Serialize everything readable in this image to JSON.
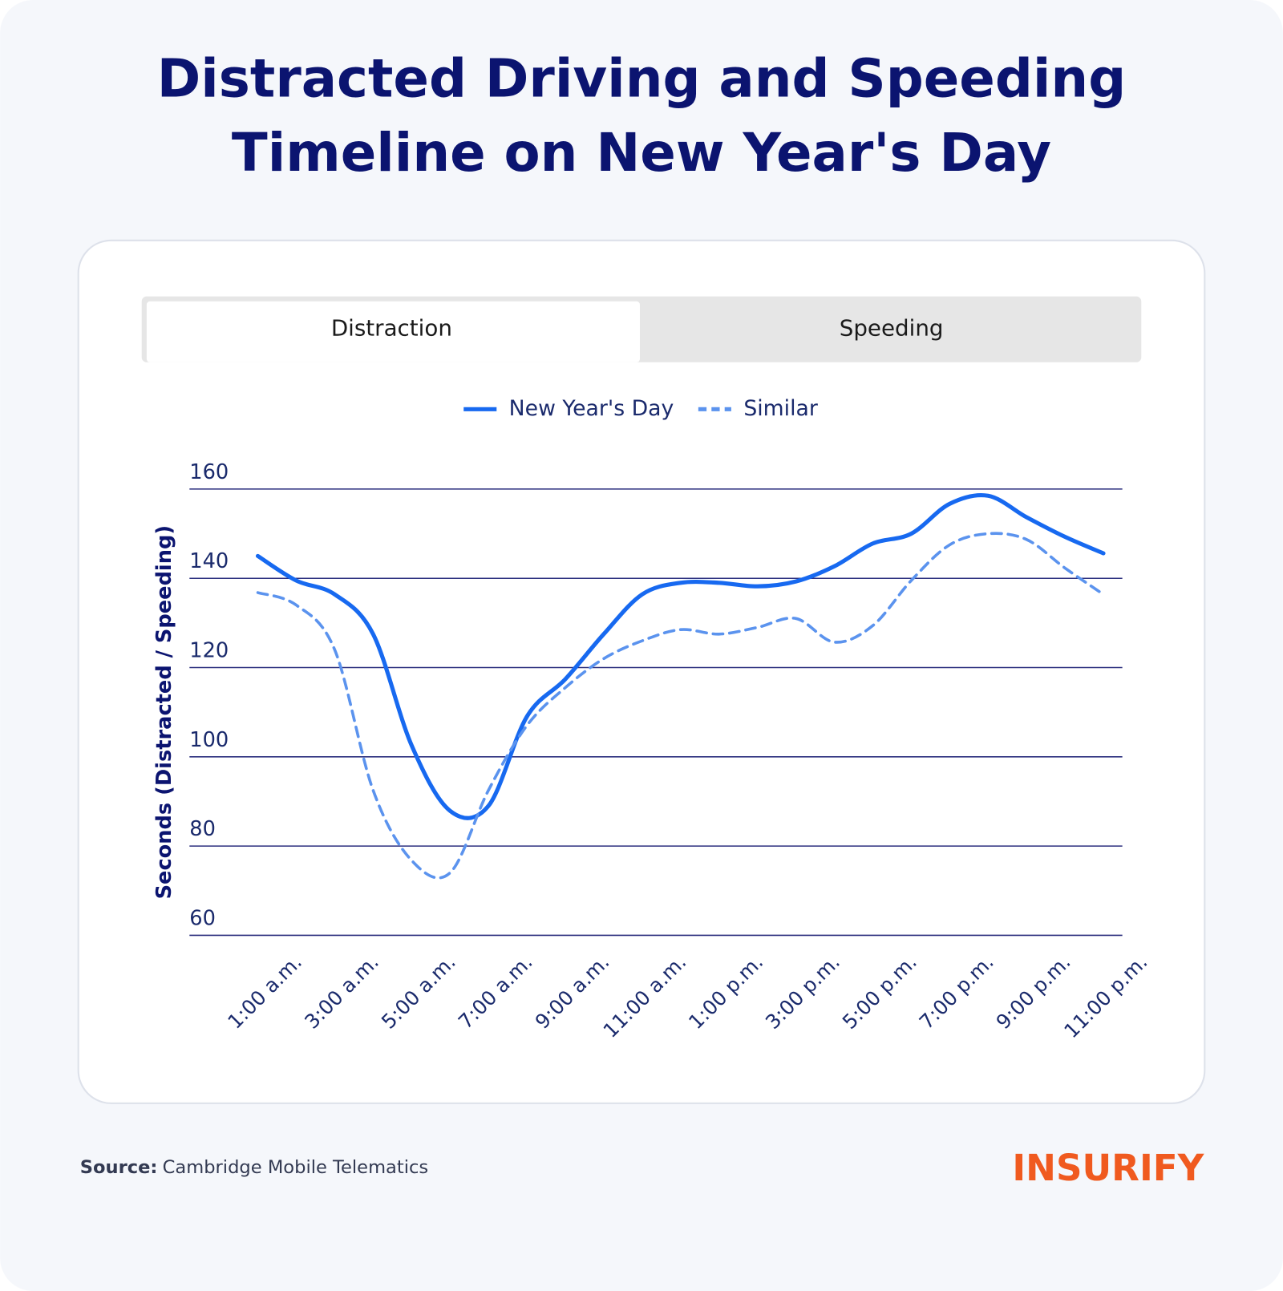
{
  "chart_data": {
    "type": "line",
    "title": [
      "Distracted Driving and Speeding",
      "Timeline on New Year's Day"
    ],
    "tabs": [
      {
        "label": "Distraction",
        "active": true
      },
      {
        "label": "Speeding",
        "active": false
      }
    ],
    "ylabel": "Seconds (Distracted / Speeding)",
    "categories": [
      "1:00 a.m.",
      null,
      "3:00 a.m.",
      null,
      "5:00 a.m.",
      null,
      "7:00 a.m.",
      null,
      "9:00 a.m.",
      null,
      "11:00 a.m.",
      null,
      "1:00 p.m.",
      null,
      "3:00 p.m.",
      null,
      "5:00 p.m.",
      null,
      "7:00 p.m.",
      null,
      "9:00 p.m.",
      null,
      "11:00 p.m."
    ],
    "series": [
      {
        "name": "New Year's Day",
        "color": "#1769f0",
        "dashed": false,
        "values": [
          145,
          139.5,
          136.4,
          127.5,
          102.6,
          87.9,
          89,
          109,
          117.4,
          127.5,
          136.4,
          139,
          139,
          138.2,
          139.3,
          142.7,
          147.8,
          150,
          156.7,
          158.5,
          153.7,
          149.3,
          145.6
        ]
      },
      {
        "name": "Similar",
        "color": "#5b93ee",
        "dashed": true,
        "values": [
          136.8,
          134,
          124,
          92.5,
          76.8,
          74,
          92.5,
          107,
          115.5,
          122,
          126,
          128.5,
          127.5,
          129,
          131,
          125.7,
          129.4,
          139.5,
          147.5,
          150,
          148.7,
          142.3,
          136.4
        ]
      }
    ],
    "ylim": [
      60,
      160
    ],
    "yticks": [
      60,
      80,
      100,
      120,
      140,
      160
    ],
    "grid": true,
    "legend": "top"
  },
  "source": {
    "label": "Source:",
    "text": "Cambridge Mobile Telematics"
  },
  "logo": "INSURIFY"
}
